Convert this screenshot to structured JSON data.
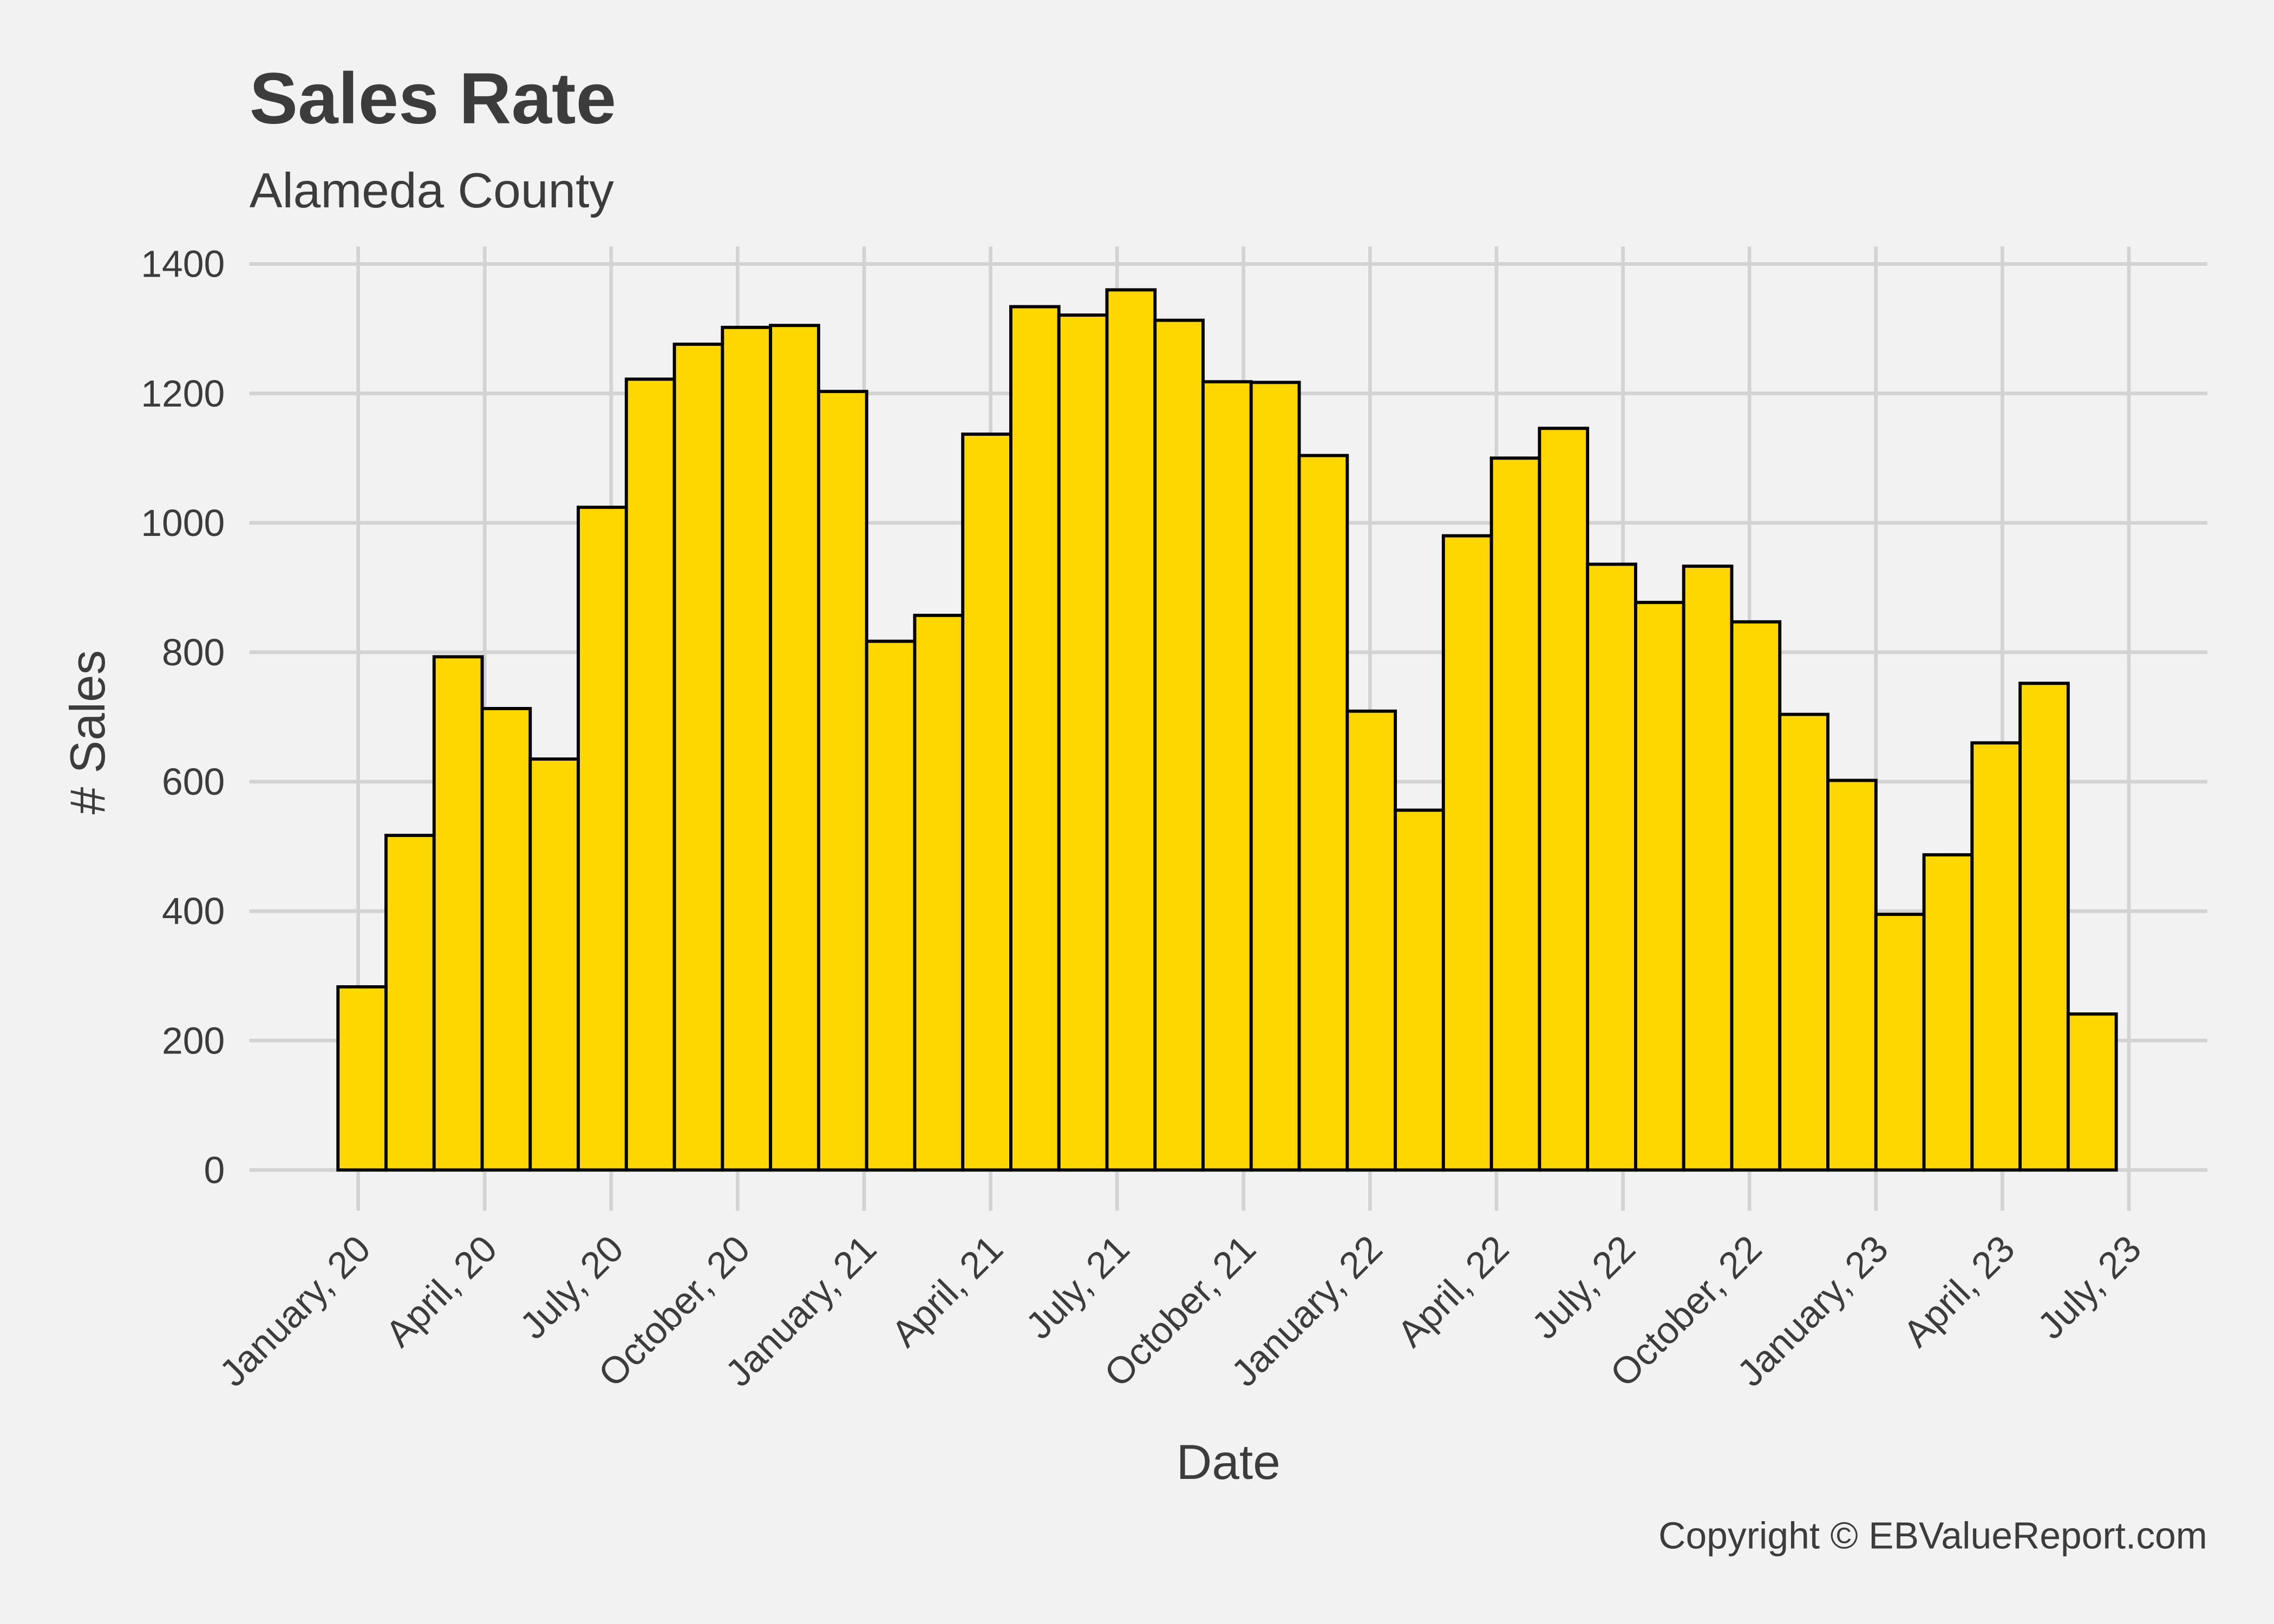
{
  "chart_data": {
    "type": "histogram",
    "title": "Sales Rate",
    "subtitle": "Alameda County",
    "x_label": "Date",
    "y_label": "# Sales",
    "annotation": "Copyright  © EBValueReport.com",
    "color": "#ffd700",
    "edge_color": "#000000",
    "grid": true,
    "bins": [
      -0.48,
      0.66,
      1.8,
      2.94,
      4.08,
      5.22,
      6.36,
      7.5,
      8.64,
      9.78,
      10.92,
      12.06,
      13.2,
      14.34,
      15.48,
      16.62,
      17.76,
      18.9,
      20.04,
      21.18,
      22.32,
      23.46,
      24.6,
      25.74,
      26.88,
      28.02,
      29.16,
      30.3,
      31.44,
      32.58,
      33.72,
      34.86,
      36.0,
      37.14,
      38.28,
      39.42,
      40.56,
      41.7
    ],
    "values": [
      283,
      517,
      793,
      713,
      635,
      1024,
      1222,
      1276,
      1302,
      1305,
      1203,
      817,
      857,
      1137,
      1334,
      1321,
      1360,
      1313,
      1218,
      1217,
      1104,
      709,
      556,
      980,
      1100,
      1146,
      936,
      877,
      933,
      847,
      704,
      602,
      395,
      487,
      660,
      752,
      241
    ],
    "xlim": [
      -2.58,
      43.86
    ],
    "xticks": [
      {
        "value": 0,
        "label": "January, 20"
      },
      {
        "value": 3,
        "label": "April, 20"
      },
      {
        "value": 6,
        "label": "July, 20"
      },
      {
        "value": 9,
        "label": "October, 20"
      },
      {
        "value": 12,
        "label": "January, 21"
      },
      {
        "value": 15,
        "label": "April, 21"
      },
      {
        "value": 18,
        "label": "July, 21"
      },
      {
        "value": 21,
        "label": "October, 21"
      },
      {
        "value": 24,
        "label": "January, 22"
      },
      {
        "value": 27,
        "label": "April, 22"
      },
      {
        "value": 30,
        "label": "July, 22"
      },
      {
        "value": 33,
        "label": "October, 22"
      },
      {
        "value": 36,
        "label": "January, 23"
      },
      {
        "value": 39,
        "label": "April, 23"
      },
      {
        "value": 42,
        "label": "July, 23"
      }
    ],
    "ylim": [
      -63,
      1427
    ],
    "yticks": [
      0,
      200,
      400,
      600,
      800,
      1000,
      1200,
      1400
    ]
  }
}
